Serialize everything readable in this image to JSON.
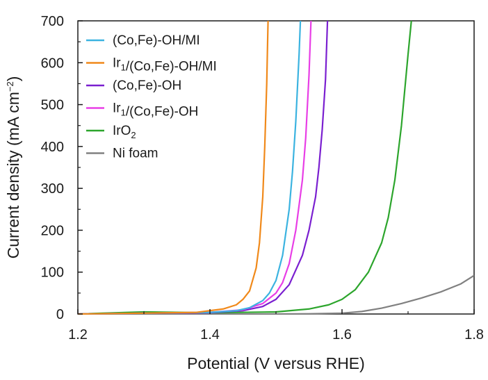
{
  "chart_data": {
    "type": "line",
    "xlabel": "Potential (V versus RHE)",
    "ylabel": "Current density (mA cm−2)",
    "ylabel_main": "Current density (mA cm",
    "ylabel_sup": "−2",
    "ylabel_end": ")",
    "xlim": [
      1.2,
      1.8
    ],
    "ylim": [
      0,
      700
    ],
    "xticks": [
      1.2,
      1.4,
      1.6,
      1.8
    ],
    "xtick_labels": [
      "1.2",
      "1.4",
      "1.6",
      "1.8"
    ],
    "yticks": [
      0,
      100,
      200,
      300,
      400,
      500,
      600,
      700
    ],
    "ytick_labels": [
      "0",
      "100",
      "200",
      "300",
      "400",
      "500",
      "600",
      "700"
    ],
    "grid": false,
    "legend_position": "top-left",
    "series": [
      {
        "name": "(Co,Fe)-OH/MI",
        "legend_parts": [
          {
            "t": "(Co,Fe)-OH/MI",
            "s": ""
          }
        ],
        "color": "#3bb3e0",
        "points": [
          [
            1.2,
            0
          ],
          [
            1.3,
            2
          ],
          [
            1.4,
            4
          ],
          [
            1.44,
            8
          ],
          [
            1.46,
            15
          ],
          [
            1.48,
            32
          ],
          [
            1.49,
            50
          ],
          [
            1.5,
            80
          ],
          [
            1.51,
            140
          ],
          [
            1.52,
            250
          ],
          [
            1.525,
            340
          ],
          [
            1.53,
            460
          ],
          [
            1.535,
            620
          ],
          [
            1.537,
            700
          ]
        ]
      },
      {
        "name": "Ir1/(Co,Fe)-OH/MI",
        "legend_parts": [
          {
            "t": "Ir",
            "s": ""
          },
          {
            "t": "1",
            "s": "sub"
          },
          {
            "t": "/(Co,Fe)-OH/MI",
            "s": ""
          }
        ],
        "color": "#f0891a",
        "points": [
          [
            1.2,
            0
          ],
          [
            1.3,
            2
          ],
          [
            1.38,
            4
          ],
          [
            1.42,
            12
          ],
          [
            1.44,
            22
          ],
          [
            1.45,
            35
          ],
          [
            1.46,
            55
          ],
          [
            1.47,
            110
          ],
          [
            1.475,
            170
          ],
          [
            1.48,
            280
          ],
          [
            1.483,
            400
          ],
          [
            1.486,
            550
          ],
          [
            1.488,
            700
          ]
        ]
      },
      {
        "name": "(Co,Fe)-OH",
        "legend_parts": [
          {
            "t": "(Co,Fe)-OH",
            "s": ""
          }
        ],
        "color": "#7a1fd0",
        "points": [
          [
            1.2,
            0
          ],
          [
            1.3,
            2
          ],
          [
            1.4,
            3
          ],
          [
            1.45,
            8
          ],
          [
            1.48,
            18
          ],
          [
            1.5,
            35
          ],
          [
            1.52,
            70
          ],
          [
            1.54,
            140
          ],
          [
            1.55,
            200
          ],
          [
            1.56,
            280
          ],
          [
            1.565,
            350
          ],
          [
            1.57,
            440
          ],
          [
            1.575,
            560
          ],
          [
            1.578,
            700
          ]
        ]
      },
      {
        "name": "Ir1/(Co,Fe)-OH",
        "legend_parts": [
          {
            "t": "Ir",
            "s": ""
          },
          {
            "t": "1",
            "s": "sub"
          },
          {
            "t": "/(Co,Fe)-OH",
            "s": ""
          }
        ],
        "color": "#e83ee6",
        "points": [
          [
            1.2,
            0
          ],
          [
            1.3,
            2
          ],
          [
            1.4,
            4
          ],
          [
            1.45,
            10
          ],
          [
            1.48,
            25
          ],
          [
            1.5,
            50
          ],
          [
            1.51,
            75
          ],
          [
            1.52,
            120
          ],
          [
            1.53,
            200
          ],
          [
            1.54,
            320
          ],
          [
            1.545,
            420
          ],
          [
            1.55,
            570
          ],
          [
            1.553,
            700
          ]
        ]
      },
      {
        "name": "IrO2",
        "legend_parts": [
          {
            "t": "IrO",
            "s": ""
          },
          {
            "t": "2",
            "s": "sub"
          }
        ],
        "color": "#2ca52c",
        "points": [
          [
            1.2,
            0
          ],
          [
            1.3,
            5
          ],
          [
            1.4,
            3
          ],
          [
            1.5,
            5
          ],
          [
            1.55,
            12
          ],
          [
            1.58,
            22
          ],
          [
            1.6,
            35
          ],
          [
            1.62,
            58
          ],
          [
            1.64,
            100
          ],
          [
            1.66,
            170
          ],
          [
            1.67,
            230
          ],
          [
            1.68,
            320
          ],
          [
            1.69,
            450
          ],
          [
            1.7,
            620
          ],
          [
            1.705,
            700
          ]
        ]
      },
      {
        "name": "Ni foam",
        "legend_parts": [
          {
            "t": "Ni foam",
            "s": ""
          }
        ],
        "color": "#808080",
        "points": [
          [
            1.2,
            0
          ],
          [
            1.3,
            0
          ],
          [
            1.4,
            0
          ],
          [
            1.5,
            0
          ],
          [
            1.55,
            0.5
          ],
          [
            1.6,
            2
          ],
          [
            1.63,
            6
          ],
          [
            1.66,
            14
          ],
          [
            1.69,
            25
          ],
          [
            1.72,
            38
          ],
          [
            1.75,
            53
          ],
          [
            1.78,
            72
          ],
          [
            1.8,
            92
          ]
        ]
      }
    ]
  }
}
